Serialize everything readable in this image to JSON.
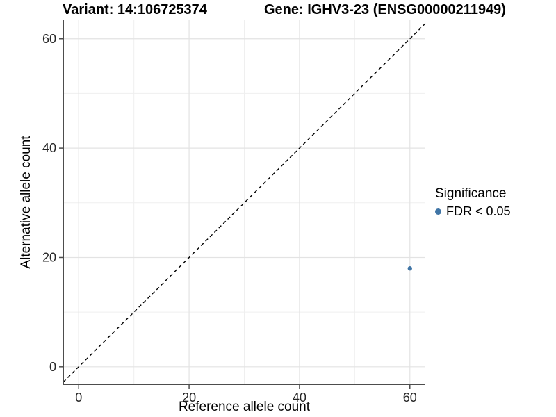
{
  "figure": {
    "title_variant": "Variant: 14:106725374",
    "title_gene": "Gene: IGHV3-23 (ENSG00000211949)"
  },
  "chart_data": {
    "type": "scatter",
    "xlabel": "Reference allele count",
    "ylabel": "Alternative allele count",
    "x_ticks": [
      0,
      20,
      40,
      60
    ],
    "y_ticks": [
      0,
      20,
      40,
      60
    ],
    "x_minor_ticks": [
      10,
      30,
      50
    ],
    "y_minor_ticks": [
      10,
      30,
      50
    ],
    "xlim": [
      -2.8,
      62.8
    ],
    "ylim": [
      -3.2,
      63.4
    ],
    "grid": "major+minor",
    "reference_line": {
      "type": "identity",
      "slope": 1,
      "intercept": 0,
      "style": "dashed",
      "color": "#000000"
    },
    "series": [
      {
        "name": "FDR < 0.05",
        "color": "#4075a6",
        "point_radius": 3.2,
        "points": [
          {
            "x": 60,
            "y": 18
          }
        ]
      }
    ],
    "legend": {
      "title": "Significance",
      "position": "right",
      "entries": [
        {
          "label": "FDR < 0.05",
          "color": "#4075a6"
        }
      ]
    }
  },
  "colors": {
    "background": "#ffffff",
    "grid_major": "#e3e3e3",
    "grid_minor": "#efefef",
    "axis_line": "#4d4d4d",
    "tick_mark": "#4d4d4d",
    "tick_label": "#262626"
  }
}
